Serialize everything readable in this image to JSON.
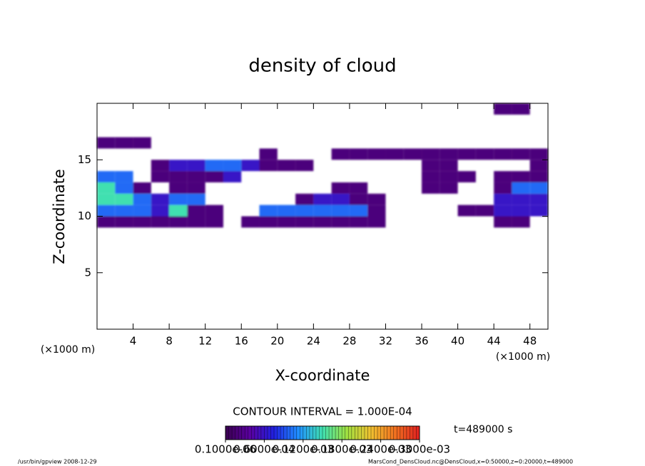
{
  "chart_data": {
    "type": "heatmap",
    "title": "density of cloud",
    "x_label": "X-coordinate",
    "y_label": "Z-coordinate",
    "x_unit": "(×1000 m)",
    "y_unit": "(×1000 m)",
    "x": [
      1,
      3,
      5,
      7,
      9,
      11,
      13,
      15,
      17,
      19,
      21,
      23,
      25,
      27,
      29,
      31,
      33,
      35,
      37,
      39,
      41,
      43,
      45,
      47,
      49
    ],
    "z": [
      9.5,
      10.5,
      11.5,
      12.5,
      13.5,
      14.5,
      15.5,
      16.5,
      19.5
    ],
    "values": [
      [
        2e-05,
        2e-05,
        2e-05,
        2e-05,
        2e-05,
        2e-05,
        2e-05,
        null,
        2e-05,
        2e-05,
        2e-05,
        2e-05,
        2e-05,
        2e-05,
        2e-05,
        2e-05,
        null,
        null,
        null,
        null,
        null,
        null,
        2e-05,
        2e-05,
        null
      ],
      [
        0.0001,
        0.0001,
        0.0001,
        6e-05,
        0.00015,
        2e-05,
        2e-05,
        null,
        null,
        0.0001,
        0.0001,
        0.0001,
        0.0001,
        0.0001,
        0.0001,
        2e-05,
        null,
        null,
        null,
        null,
        2e-05,
        2e-05,
        6e-05,
        6e-05,
        6e-05
      ],
      [
        0.00015,
        0.00015,
        0.0001,
        6e-05,
        0.0001,
        0.0001,
        null,
        null,
        null,
        null,
        null,
        2e-05,
        6e-05,
        6e-05,
        2e-05,
        2e-05,
        null,
        null,
        null,
        null,
        null,
        null,
        6e-05,
        6e-05,
        6e-05
      ],
      [
        0.00015,
        0.0001,
        2e-05,
        null,
        2e-05,
        2e-05,
        null,
        null,
        null,
        null,
        null,
        null,
        null,
        2e-05,
        2e-05,
        null,
        null,
        null,
        2e-05,
        2e-05,
        null,
        null,
        2e-05,
        0.0001,
        0.0001
      ],
      [
        0.0001,
        0.0001,
        null,
        2e-05,
        2e-05,
        2e-05,
        2e-05,
        6e-05,
        null,
        null,
        null,
        null,
        null,
        null,
        null,
        null,
        null,
        null,
        2e-05,
        2e-05,
        2e-05,
        null,
        2e-05,
        2e-05,
        2e-05
      ],
      [
        null,
        null,
        null,
        2e-05,
        6e-05,
        6e-05,
        0.0001,
        0.0001,
        6e-05,
        2e-05,
        2e-05,
        2e-05,
        null,
        null,
        null,
        null,
        null,
        null,
        2e-05,
        2e-05,
        null,
        null,
        null,
        null,
        2e-05
      ],
      [
        null,
        null,
        null,
        null,
        null,
        null,
        null,
        null,
        null,
        2e-05,
        null,
        null,
        null,
        2e-05,
        2e-05,
        2e-05,
        2e-05,
        2e-05,
        2e-05,
        2e-05,
        2e-05,
        2e-05,
        2e-05,
        2e-05,
        2e-05
      ],
      [
        2e-05,
        2e-05,
        2e-05,
        null,
        null,
        null,
        null,
        null,
        null,
        null,
        null,
        null,
        null,
        null,
        null,
        null,
        null,
        null,
        null,
        null,
        null,
        null,
        null,
        null,
        null
      ],
      [
        null,
        null,
        null,
        null,
        null,
        null,
        null,
        null,
        null,
        null,
        null,
        null,
        null,
        null,
        null,
        null,
        null,
        null,
        null,
        null,
        null,
        null,
        2e-05,
        2e-05,
        null
      ]
    ],
    "xlim": [
      0,
      50
    ],
    "xticks": [
      4,
      8,
      12,
      16,
      20,
      24,
      28,
      32,
      36,
      40,
      44,
      48
    ],
    "ylim": [
      0,
      20
    ],
    "yticks": [
      5,
      10,
      15
    ],
    "contour_interval": "CONTOUR INTERVAL = 1.000E-04",
    "time_label": "t=489000 s",
    "colorbar": {
      "lim": [
        0,
        0.0003
      ],
      "colors": [
        "#3a0050",
        "#5a00a0",
        "#2020e0",
        "#2090ff",
        "#40e0b0",
        "#a0e040",
        "#f0c030",
        "#f07020",
        "#e02020"
      ],
      "ticks": [
        {
          "value": 0,
          "label": "0.1000e-06"
        },
        {
          "value": 6e-05,
          "label": "0.6000e-04"
        },
        {
          "value": 0.00012,
          "label": "0.1200e-03"
        },
        {
          "value": 0.00018,
          "label": "0.1800e-03"
        },
        {
          "value": 0.00024,
          "label": "0.2400e-03"
        },
        {
          "value": 0.0003,
          "label": "0.3000e-03"
        }
      ]
    },
    "footer_left": "/usr/bin/gpview   2008-12-29",
    "footer_right": "MarsCond_DensCloud.nc@DensCloud,x=0:50000,z=0:20000,t=489000"
  }
}
